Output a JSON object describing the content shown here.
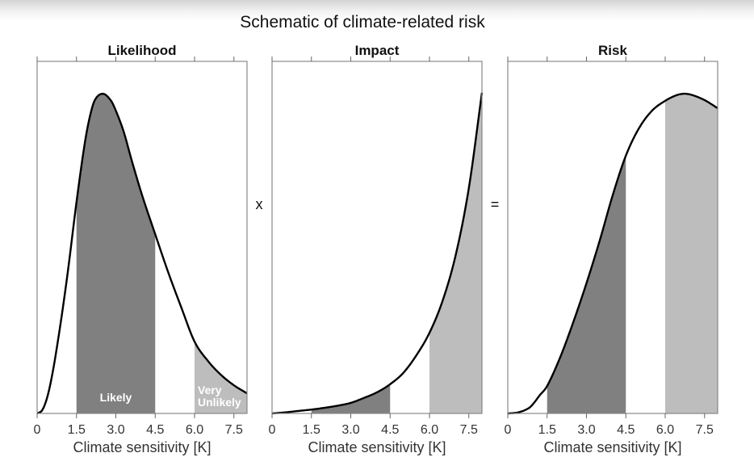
{
  "chart_data": {
    "type": "area",
    "title": "Schematic of climate-related risk",
    "operators": [
      "x",
      "="
    ],
    "xlim": [
      0,
      8.0
    ],
    "ylim": [
      0,
      1
    ],
    "xticks": [
      0,
      1.5,
      3.0,
      4.5,
      6.0,
      7.5
    ],
    "xtick_labels": [
      "0",
      "1.5",
      "3.0",
      "4.5",
      "6.0",
      "7.5"
    ],
    "colors": {
      "likely_band": "#808080",
      "very_unlikely_band": "#bdbdbd",
      "curve": "#000000",
      "frame": "#888888"
    },
    "panels": [
      {
        "title": "Likelihood",
        "xlabel": "Climate sensitivity [K]",
        "ylabel": "",
        "bands": [
          {
            "name": "Likely",
            "label": "Likely",
            "x0": 1.5,
            "x1": 4.5,
            "color": "#808080"
          },
          {
            "name": "Very Unlikely",
            "label_lines": [
              "Very",
              "Unlikely"
            ],
            "x0": 6.0,
            "x1": 8.0,
            "color": "#bdbdbd"
          }
        ],
        "x": [
          0,
          0.2,
          0.4,
          0.6,
          0.8,
          1.0,
          1.2,
          1.5,
          1.8,
          2.0,
          2.2,
          2.5,
          2.8,
          3.0,
          3.3,
          3.6,
          4.0,
          4.5,
          5.0,
          5.5,
          6.0,
          6.5,
          7.0,
          7.5,
          8.0
        ],
        "y": [
          0,
          0.01,
          0.05,
          0.12,
          0.21,
          0.31,
          0.42,
          0.6,
          0.76,
          0.84,
          0.89,
          0.908,
          0.89,
          0.86,
          0.8,
          0.72,
          0.62,
          0.509,
          0.4,
          0.3,
          0.204,
          0.15,
          0.11,
          0.08,
          0.057
        ]
      },
      {
        "title": "Impact",
        "xlabel": "Climate sensitivity [K]",
        "ylabel": "",
        "bands": [
          {
            "name": "Likely",
            "x0": 1.5,
            "x1": 4.5,
            "color": "#808080"
          },
          {
            "name": "Very Unlikely",
            "x0": 6.0,
            "x1": 8.0,
            "color": "#bdbdbd"
          }
        ],
        "x": [
          0,
          0.5,
          1.0,
          1.5,
          2.0,
          2.5,
          3.0,
          3.5,
          4.0,
          4.5,
          5.0,
          5.5,
          6.0,
          6.5,
          7.0,
          7.5,
          8.0
        ],
        "y": [
          0,
          0.003,
          0.007,
          0.011,
          0.016,
          0.022,
          0.03,
          0.044,
          0.06,
          0.083,
          0.115,
          0.165,
          0.229,
          0.32,
          0.45,
          0.64,
          0.911
        ]
      },
      {
        "title": "Risk",
        "xlabel": "Climate sensitivity [K]",
        "ylabel": "",
        "bands": [
          {
            "name": "Likely",
            "x0": 1.5,
            "x1": 4.5,
            "color": "#808080"
          },
          {
            "name": "Very Unlikely",
            "x0": 6.0,
            "x1": 8.0,
            "color": "#bdbdbd"
          }
        ],
        "x": [
          0,
          0.4,
          0.8,
          1.0,
          1.2,
          1.5,
          2.0,
          2.5,
          3.0,
          3.5,
          4.0,
          4.5,
          5.0,
          5.5,
          6.0,
          6.4,
          6.7,
          7.0,
          7.5,
          8.0
        ],
        "y": [
          0,
          0.003,
          0.015,
          0.03,
          0.05,
          0.078,
          0.16,
          0.26,
          0.37,
          0.49,
          0.62,
          0.732,
          0.81,
          0.86,
          0.888,
          0.903,
          0.908,
          0.905,
          0.89,
          0.867
        ]
      }
    ]
  }
}
